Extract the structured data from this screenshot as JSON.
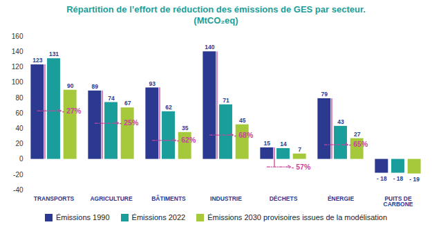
{
  "chart_data": {
    "type": "bar",
    "title": "Répartition de l’effort de réduction des émissions de GES par secteur.",
    "subtitle": "(MtCO₂eq)",
    "categories": [
      "TRANSPORTS",
      "AGRICULTURE",
      "BÂTIMENTS",
      "INDUSTRIE",
      "DÉCHETS",
      "ÉNERGIE",
      "PUITS DE CARBONE"
    ],
    "series": [
      {
        "name": "Émissions 1990",
        "color": "#2b3990",
        "values": [
          123,
          89,
          93,
          140,
          15,
          79,
          -18
        ],
        "value_labels": [
          "123",
          "89",
          "93",
          "140",
          "15",
          "79",
          "- 18"
        ]
      },
      {
        "name": "Émissions 2022",
        "color": "#1a9e9c",
        "values": [
          131,
          74,
          62,
          71,
          14,
          43,
          -18
        ],
        "value_labels": [
          "131",
          "74",
          "62",
          "71",
          "14",
          "43",
          "- 18"
        ]
      },
      {
        "name": "Émissions 2030 provisoires issues de la modélisation",
        "color": "#a6c83b",
        "values": [
          90,
          67,
          35,
          45,
          7,
          27,
          -19
        ],
        "value_labels": [
          "90",
          "67",
          "35",
          "45",
          "7",
          "27",
          "- 19"
        ]
      }
    ],
    "ylim": [
      -40,
      160
    ],
    "yticks": [
      -40,
      -20,
      0,
      20,
      40,
      60,
      80,
      100,
      120,
      140,
      160
    ],
    "grid": false,
    "legend": "bottom",
    "data_labels": true,
    "annotations": [
      {
        "category": "TRANSPORTS",
        "text": "- 27%",
        "color": "#c8449b"
      },
      {
        "category": "AGRICULTURE",
        "text": "- 25%",
        "color": "#c8449b"
      },
      {
        "category": "BÂTIMENTS",
        "text": "- 62%",
        "color": "#c8449b"
      },
      {
        "category": "INDUSTRIE",
        "text": "- 68%",
        "color": "#c8449b"
      },
      {
        "category": "DÉCHETS",
        "text": "- 57%",
        "color": "#c8449b"
      },
      {
        "category": "ÉNERGIE",
        "text": "- 65%",
        "color": "#c8449b"
      }
    ]
  }
}
